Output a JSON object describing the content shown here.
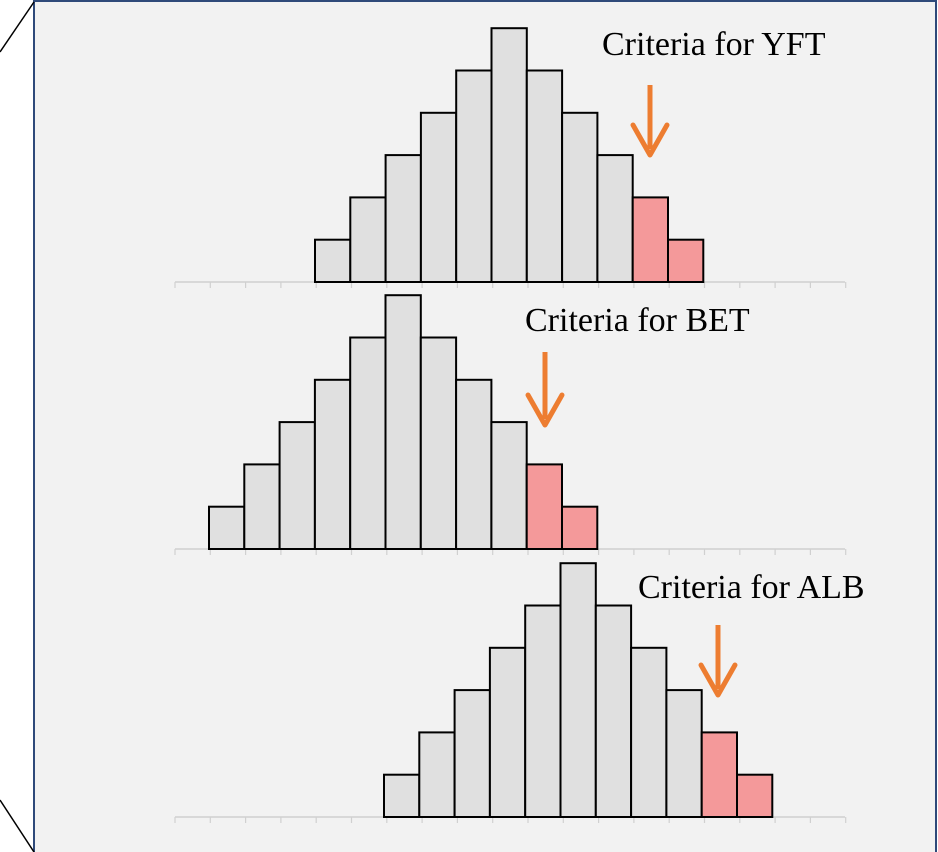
{
  "panels": [
    {
      "label": "Criteria for YFT"
    },
    {
      "label": "Criteria for BET"
    },
    {
      "label": "Criteria for ALB"
    }
  ]
}
